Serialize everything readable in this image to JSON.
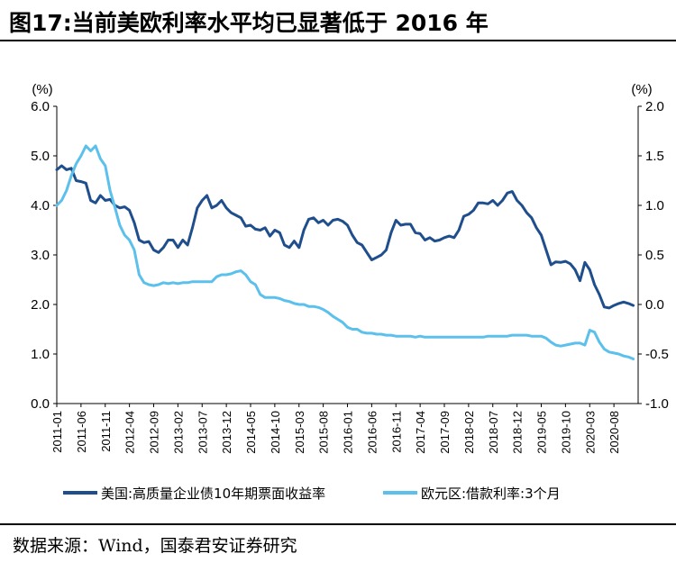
{
  "title": "图17:当前美欧利率水平均已显著低于 2016 年",
  "source": "数据来源：Wind，国泰君安证券研究",
  "chart_data": {
    "type": "line",
    "left_axis": {
      "unit_label": "(%)",
      "ylim": [
        0,
        6
      ],
      "ticks": [
        "0.0",
        "1.0",
        "2.0",
        "3.0",
        "4.0",
        "5.0",
        "6.0"
      ]
    },
    "right_axis": {
      "unit_label": "(%)",
      "ylim": [
        -1,
        2
      ],
      "ticks": [
        "-1.0",
        "-0.5",
        "0.0",
        "0.5",
        "1.0",
        "1.5",
        "2.0"
      ]
    },
    "x_tick_labels": [
      "2011-01",
      "2011-06",
      "2011-11",
      "2012-04",
      "2012-09",
      "2013-02",
      "2013-07",
      "2013-12",
      "2014-05",
      "2014-10",
      "2015-03",
      "2015-08",
      "2016-01",
      "2016-06",
      "2016-11",
      "2017-04",
      "2017-09",
      "2018-02",
      "2018-07",
      "2018-12",
      "2019-05",
      "2019-10",
      "2020-03",
      "2020-08"
    ],
    "x_range": [
      "2011-01",
      "2020-12"
    ],
    "series": [
      {
        "name": "美国:高质量企业债10年期票面收益率",
        "axis": "left",
        "color": "#1f4e8c",
        "points": [
          [
            "2011-01",
            4.72
          ],
          [
            "2011-02",
            4.8
          ],
          [
            "2011-03",
            4.72
          ],
          [
            "2011-04",
            4.75
          ],
          [
            "2011-05",
            4.5
          ],
          [
            "2011-06",
            4.48
          ],
          [
            "2011-07",
            4.45
          ],
          [
            "2011-08",
            4.1
          ],
          [
            "2011-09",
            4.05
          ],
          [
            "2011-10",
            4.2
          ],
          [
            "2011-11",
            4.1
          ],
          [
            "2011-12",
            4.12
          ],
          [
            "2012-01",
            4.0
          ],
          [
            "2012-02",
            3.95
          ],
          [
            "2012-03",
            3.97
          ],
          [
            "2012-04",
            3.9
          ],
          [
            "2012-05",
            3.65
          ],
          [
            "2012-06",
            3.3
          ],
          [
            "2012-07",
            3.25
          ],
          [
            "2012-08",
            3.27
          ],
          [
            "2012-09",
            3.1
          ],
          [
            "2012-10",
            3.05
          ],
          [
            "2012-11",
            3.15
          ],
          [
            "2012-12",
            3.3
          ],
          [
            "2013-01",
            3.3
          ],
          [
            "2013-02",
            3.15
          ],
          [
            "2013-03",
            3.3
          ],
          [
            "2013-04",
            3.2
          ],
          [
            "2013-05",
            3.55
          ],
          [
            "2013-06",
            3.95
          ],
          [
            "2013-07",
            4.1
          ],
          [
            "2013-08",
            4.2
          ],
          [
            "2013-09",
            3.95
          ],
          [
            "2013-10",
            4.0
          ],
          [
            "2013-11",
            4.1
          ],
          [
            "2013-12",
            3.95
          ],
          [
            "2014-01",
            3.85
          ],
          [
            "2014-02",
            3.8
          ],
          [
            "2014-03",
            3.75
          ],
          [
            "2014-04",
            3.58
          ],
          [
            "2014-05",
            3.6
          ],
          [
            "2014-06",
            3.52
          ],
          [
            "2014-07",
            3.5
          ],
          [
            "2014-08",
            3.55
          ],
          [
            "2014-09",
            3.38
          ],
          [
            "2014-10",
            3.5
          ],
          [
            "2014-11",
            3.45
          ],
          [
            "2014-12",
            3.2
          ],
          [
            "2015-01",
            3.15
          ],
          [
            "2015-02",
            3.28
          ],
          [
            "2015-03",
            3.15
          ],
          [
            "2015-04",
            3.5
          ],
          [
            "2015-05",
            3.72
          ],
          [
            "2015-06",
            3.75
          ],
          [
            "2015-07",
            3.65
          ],
          [
            "2015-08",
            3.7
          ],
          [
            "2015-09",
            3.6
          ],
          [
            "2015-10",
            3.7
          ],
          [
            "2015-11",
            3.72
          ],
          [
            "2015-12",
            3.68
          ],
          [
            "2016-01",
            3.6
          ],
          [
            "2016-02",
            3.4
          ],
          [
            "2016-03",
            3.25
          ],
          [
            "2016-04",
            3.2
          ],
          [
            "2016-05",
            3.05
          ],
          [
            "2016-06",
            2.9
          ],
          [
            "2016-07",
            2.95
          ],
          [
            "2016-08",
            3.0
          ],
          [
            "2016-09",
            3.1
          ],
          [
            "2016-10",
            3.45
          ],
          [
            "2016-11",
            3.7
          ],
          [
            "2016-12",
            3.6
          ],
          [
            "2017-01",
            3.62
          ],
          [
            "2017-02",
            3.62
          ],
          [
            "2017-03",
            3.45
          ],
          [
            "2017-04",
            3.43
          ],
          [
            "2017-05",
            3.3
          ],
          [
            "2017-06",
            3.35
          ],
          [
            "2017-07",
            3.28
          ],
          [
            "2017-08",
            3.3
          ],
          [
            "2017-09",
            3.35
          ],
          [
            "2017-10",
            3.38
          ],
          [
            "2017-11",
            3.35
          ],
          [
            "2017-12",
            3.5
          ],
          [
            "2018-01",
            3.78
          ],
          [
            "2018-02",
            3.82
          ],
          [
            "2018-03",
            3.9
          ],
          [
            "2018-04",
            4.05
          ],
          [
            "2018-05",
            4.05
          ],
          [
            "2018-06",
            4.03
          ],
          [
            "2018-07",
            4.1
          ],
          [
            "2018-08",
            4.0
          ],
          [
            "2018-09",
            4.1
          ],
          [
            "2018-10",
            4.25
          ],
          [
            "2018-11",
            4.28
          ],
          [
            "2018-12",
            4.1
          ],
          [
            "2019-01",
            4.0
          ],
          [
            "2019-02",
            3.85
          ],
          [
            "2019-03",
            3.75
          ],
          [
            "2019-04",
            3.55
          ],
          [
            "2019-05",
            3.4
          ],
          [
            "2019-06",
            3.1
          ],
          [
            "2019-07",
            2.8
          ],
          [
            "2019-08",
            2.86
          ],
          [
            "2019-09",
            2.85
          ],
          [
            "2019-10",
            2.87
          ],
          [
            "2019-11",
            2.82
          ],
          [
            "2019-12",
            2.7
          ],
          [
            "2020-01",
            2.48
          ],
          [
            "2020-02",
            2.85
          ],
          [
            "2020-03",
            2.7
          ],
          [
            "2020-04",
            2.4
          ],
          [
            "2020-05",
            2.2
          ],
          [
            "2020-06",
            1.95
          ],
          [
            "2020-07",
            1.93
          ],
          [
            "2020-08",
            1.98
          ],
          [
            "2020-09",
            2.02
          ],
          [
            "2020-10",
            2.05
          ],
          [
            "2020-11",
            2.02
          ],
          [
            "2020-12",
            1.98
          ]
        ]
      },
      {
        "name": "欧元区:借款利率:3个月",
        "axis": "right",
        "color": "#5bc0eb",
        "points": [
          [
            "2011-01",
            1.0
          ],
          [
            "2011-02",
            1.05
          ],
          [
            "2011-03",
            1.15
          ],
          [
            "2011-04",
            1.3
          ],
          [
            "2011-05",
            1.42
          ],
          [
            "2011-06",
            1.5
          ],
          [
            "2011-07",
            1.6
          ],
          [
            "2011-08",
            1.55
          ],
          [
            "2011-09",
            1.6
          ],
          [
            "2011-10",
            1.47
          ],
          [
            "2011-11",
            1.4
          ],
          [
            "2011-12",
            1.15
          ],
          [
            "2012-01",
            0.98
          ],
          [
            "2012-02",
            0.8
          ],
          [
            "2012-03",
            0.7
          ],
          [
            "2012-04",
            0.65
          ],
          [
            "2012-05",
            0.55
          ],
          [
            "2012-06",
            0.3
          ],
          [
            "2012-07",
            0.22
          ],
          [
            "2012-08",
            0.2
          ],
          [
            "2012-09",
            0.19
          ],
          [
            "2012-10",
            0.2
          ],
          [
            "2012-11",
            0.22
          ],
          [
            "2012-12",
            0.21
          ],
          [
            "2013-01",
            0.22
          ],
          [
            "2013-02",
            0.21
          ],
          [
            "2013-03",
            0.22
          ],
          [
            "2013-04",
            0.22
          ],
          [
            "2013-05",
            0.23
          ],
          [
            "2013-06",
            0.23
          ],
          [
            "2013-07",
            0.23
          ],
          [
            "2013-08",
            0.23
          ],
          [
            "2013-09",
            0.23
          ],
          [
            "2013-10",
            0.28
          ],
          [
            "2013-11",
            0.3
          ],
          [
            "2013-12",
            0.3
          ],
          [
            "2014-01",
            0.31
          ],
          [
            "2014-02",
            0.33
          ],
          [
            "2014-03",
            0.34
          ],
          [
            "2014-04",
            0.3
          ],
          [
            "2014-05",
            0.23
          ],
          [
            "2014-06",
            0.2
          ],
          [
            "2014-07",
            0.1
          ],
          [
            "2014-08",
            0.07
          ],
          [
            "2014-09",
            0.07
          ],
          [
            "2014-10",
            0.07
          ],
          [
            "2014-11",
            0.06
          ],
          [
            "2014-12",
            0.04
          ],
          [
            "2015-01",
            0.03
          ],
          [
            "2015-02",
            0.01
          ],
          [
            "2015-03",
            0.0
          ],
          [
            "2015-04",
            0.0
          ],
          [
            "2015-05",
            -0.02
          ],
          [
            "2015-06",
            -0.02
          ],
          [
            "2015-07",
            -0.03
          ],
          [
            "2015-08",
            -0.05
          ],
          [
            "2015-09",
            -0.08
          ],
          [
            "2015-10",
            -0.12
          ],
          [
            "2015-11",
            -0.15
          ],
          [
            "2015-12",
            -0.18
          ],
          [
            "2016-01",
            -0.23
          ],
          [
            "2016-02",
            -0.25
          ],
          [
            "2016-03",
            -0.25
          ],
          [
            "2016-04",
            -0.28
          ],
          [
            "2016-05",
            -0.29
          ],
          [
            "2016-06",
            -0.29
          ],
          [
            "2016-07",
            -0.3
          ],
          [
            "2016-08",
            -0.3
          ],
          [
            "2016-09",
            -0.31
          ],
          [
            "2016-10",
            -0.31
          ],
          [
            "2016-11",
            -0.32
          ],
          [
            "2016-12",
            -0.32
          ],
          [
            "2017-01",
            -0.32
          ],
          [
            "2017-02",
            -0.32
          ],
          [
            "2017-03",
            -0.33
          ],
          [
            "2017-04",
            -0.32
          ],
          [
            "2017-05",
            -0.33
          ],
          [
            "2017-06",
            -0.33
          ],
          [
            "2017-07",
            -0.33
          ],
          [
            "2017-08",
            -0.33
          ],
          [
            "2017-09",
            -0.33
          ],
          [
            "2017-10",
            -0.33
          ],
          [
            "2017-11",
            -0.33
          ],
          [
            "2017-12",
            -0.33
          ],
          [
            "2018-01",
            -0.33
          ],
          [
            "2018-02",
            -0.33
          ],
          [
            "2018-03",
            -0.33
          ],
          [
            "2018-04",
            -0.33
          ],
          [
            "2018-05",
            -0.33
          ],
          [
            "2018-06",
            -0.32
          ],
          [
            "2018-07",
            -0.32
          ],
          [
            "2018-08",
            -0.32
          ],
          [
            "2018-09",
            -0.32
          ],
          [
            "2018-10",
            -0.32
          ],
          [
            "2018-11",
            -0.31
          ],
          [
            "2018-12",
            -0.31
          ],
          [
            "2019-01",
            -0.31
          ],
          [
            "2019-02",
            -0.31
          ],
          [
            "2019-03",
            -0.32
          ],
          [
            "2019-04",
            -0.32
          ],
          [
            "2019-05",
            -0.32
          ],
          [
            "2019-06",
            -0.34
          ],
          [
            "2019-07",
            -0.38
          ],
          [
            "2019-08",
            -0.41
          ],
          [
            "2019-09",
            -0.42
          ],
          [
            "2019-10",
            -0.41
          ],
          [
            "2019-11",
            -0.4
          ],
          [
            "2019-12",
            -0.39
          ],
          [
            "2020-01",
            -0.39
          ],
          [
            "2020-02",
            -0.41
          ],
          [
            "2020-03",
            -0.26
          ],
          [
            "2020-04",
            -0.28
          ],
          [
            "2020-05",
            -0.38
          ],
          [
            "2020-06",
            -0.45
          ],
          [
            "2020-07",
            -0.48
          ],
          [
            "2020-08",
            -0.49
          ],
          [
            "2020-09",
            -0.5
          ],
          [
            "2020-10",
            -0.52
          ],
          [
            "2020-11",
            -0.53
          ],
          [
            "2020-12",
            -0.55
          ]
        ]
      }
    ],
    "legend_position": "bottom",
    "grid": false
  }
}
